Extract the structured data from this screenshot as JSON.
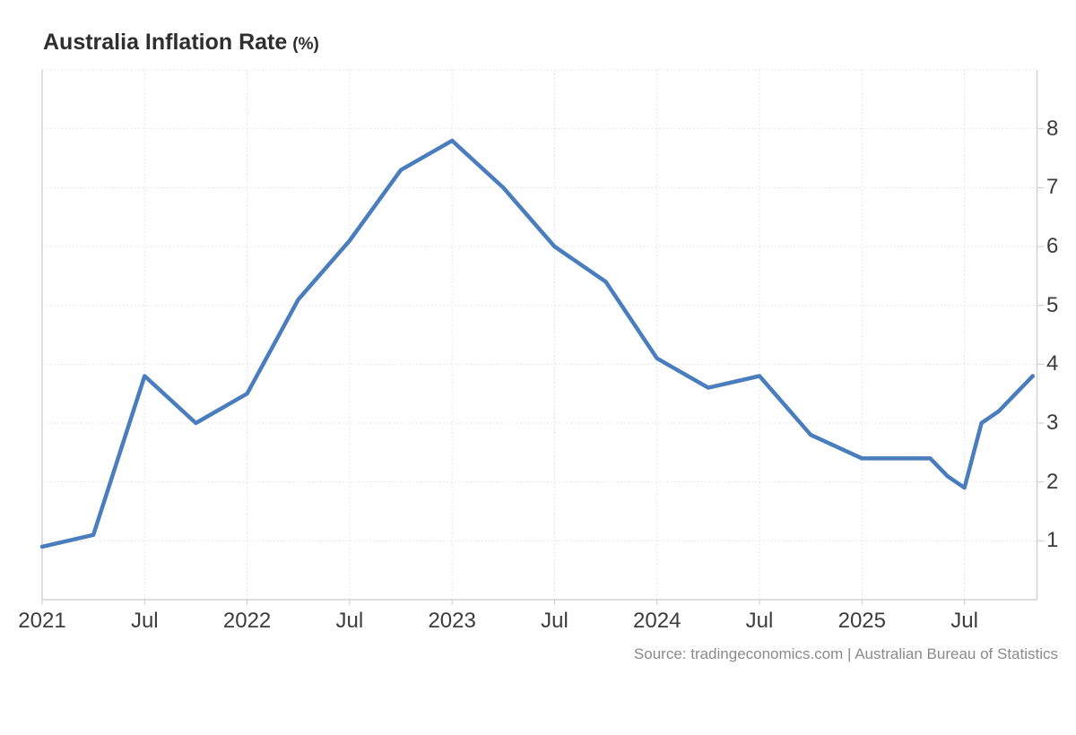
{
  "header": {
    "title": "Australia Inflation Rate",
    "title_unit": "(%)"
  },
  "footer": {
    "source_text": "Source: tradingeconomics.com | Australian Bureau of Statistics"
  },
  "colors": {
    "background": "#ffffff",
    "line": "#4a7dbd",
    "grid": "#dedede",
    "axis": "#d3d3d3",
    "tick_stub": "#cccccc",
    "tick_text": "#3c3c3c",
    "title_text": "#2e2e2e",
    "source_text": "#8a8a8a"
  },
  "chart_data": {
    "type": "line",
    "title": "Australia Inflation Rate (%)",
    "ylabel": "",
    "xlabel": "",
    "legend": "none",
    "grid": "dotted",
    "ylim": [
      0,
      9
    ],
    "y_gridlines": [
      1,
      2,
      3,
      4,
      5,
      6,
      7,
      8,
      9
    ],
    "y_ticks": [
      1,
      2,
      3,
      4,
      5,
      6,
      7,
      8
    ],
    "x_ticks": [
      {
        "date": "2021-01",
        "label": "2021"
      },
      {
        "date": "2021-07",
        "label": "Jul"
      },
      {
        "date": "2022-01",
        "label": "2022"
      },
      {
        "date": "2022-07",
        "label": "Jul"
      },
      {
        "date": "2023-01",
        "label": "2023"
      },
      {
        "date": "2023-07",
        "label": "Jul"
      },
      {
        "date": "2024-01",
        "label": "2024"
      },
      {
        "date": "2024-07",
        "label": "Jul"
      },
      {
        "date": "2025-01",
        "label": "2025"
      },
      {
        "date": "2025-07",
        "label": "Jul"
      }
    ],
    "series": [
      {
        "name": "Australia Inflation Rate (%)",
        "dates": [
          "2021-01",
          "2021-04",
          "2021-07",
          "2021-10",
          "2022-01",
          "2022-04",
          "2022-07",
          "2022-10",
          "2023-01",
          "2023-04",
          "2023-07",
          "2023-10",
          "2024-01",
          "2024-04",
          "2024-07",
          "2024-10",
          "2025-01",
          "2025-04",
          "2025-05",
          "2025-06",
          "2025-07",
          "2025-08",
          "2025-09",
          "2025-10",
          "2025-11"
        ],
        "values": [
          0.9,
          1.1,
          3.8,
          3.0,
          3.5,
          5.1,
          6.1,
          7.3,
          7.8,
          7.0,
          6.0,
          5.4,
          4.1,
          3.6,
          3.8,
          2.8,
          2.4,
          2.4,
          2.4,
          2.1,
          1.9,
          3.0,
          3.2,
          3.5,
          3.8
        ]
      }
    ]
  }
}
